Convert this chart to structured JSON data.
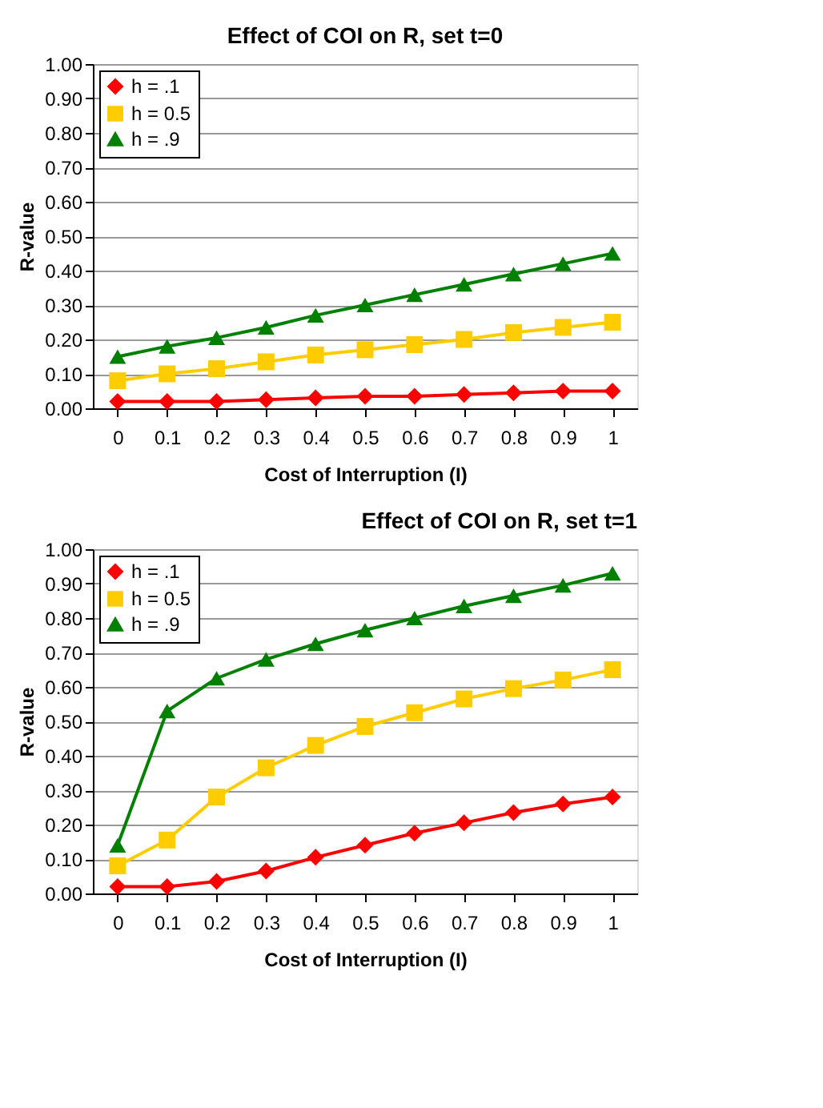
{
  "chart_data": [
    {
      "type": "line",
      "title": "Effect of COI on R, set t=0",
      "xlabel": "Cost of Interruption (I)",
      "ylabel": "R-value",
      "categories": [
        "0",
        "0.1",
        "0.2",
        "0.3",
        "0.4",
        "0.5",
        "0.6",
        "0.7",
        "0.8",
        "0.9",
        "1"
      ],
      "series": [
        {
          "name": "h = .1",
          "color": "#ff0000",
          "marker": "diamond",
          "values": [
            0.02,
            0.02,
            0.02,
            0.025,
            0.03,
            0.035,
            0.035,
            0.04,
            0.045,
            0.05,
            0.05
          ]
        },
        {
          "name": "h = 0.5",
          "color": "#ffcc00",
          "marker": "square",
          "values": [
            0.08,
            0.1,
            0.115,
            0.135,
            0.155,
            0.17,
            0.185,
            0.2,
            0.22,
            0.235,
            0.25
          ]
        },
        {
          "name": "h = .9",
          "color": "#008000",
          "marker": "triangle",
          "values": [
            0.15,
            0.18,
            0.205,
            0.235,
            0.27,
            0.3,
            0.33,
            0.36,
            0.39,
            0.42,
            0.45
          ]
        }
      ],
      "ylim": [
        0,
        1
      ],
      "yticks": [
        {
          "value": 0,
          "label": "0.00"
        },
        {
          "value": 0.1,
          "label": "0.10"
        },
        {
          "value": 0.2,
          "label": "0.20"
        },
        {
          "value": 0.3,
          "label": "0.30"
        },
        {
          "value": 0.4,
          "label": "0.40"
        },
        {
          "value": 0.5,
          "label": "0.50"
        },
        {
          "value": 0.6,
          "label": "0.60"
        },
        {
          "value": 0.7,
          "label": "0.70"
        },
        {
          "value": 0.8,
          "label": "0.80"
        },
        {
          "value": 0.9,
          "label": "0.90"
        },
        {
          "value": 1,
          "label": "1.00"
        }
      ],
      "grid": "y",
      "legend": "top left",
      "line_style": "solid"
    },
    {
      "type": "line",
      "title": "Effect of COI on R, set t=1",
      "xlabel": "Cost of Interruption (I)",
      "ylabel": "R-value",
      "categories": [
        "0",
        "0.1",
        "0.2",
        "0.3",
        "0.4",
        "0.5",
        "0.6",
        "0.7",
        "0.8",
        "0.9",
        "1"
      ],
      "series": [
        {
          "name": "h = .1",
          "color": "#ff0000",
          "marker": "diamond",
          "values": [
            0.02,
            0.02,
            0.035,
            0.065,
            0.105,
            0.14,
            0.175,
            0.205,
            0.235,
            0.26,
            0.28
          ]
        },
        {
          "name": "h = 0.5",
          "color": "#ffcc00",
          "marker": "square",
          "values": [
            0.08,
            0.155,
            0.28,
            0.365,
            0.43,
            0.485,
            0.525,
            0.565,
            0.595,
            0.62,
            0.65
          ]
        },
        {
          "name": "h = .9",
          "color": "#008000",
          "marker": "triangle",
          "values": [
            0.14,
            0.53,
            0.625,
            0.68,
            0.725,
            0.765,
            0.8,
            0.835,
            0.865,
            0.895,
            0.93
          ]
        }
      ],
      "ylim": [
        0,
        1
      ],
      "yticks": [
        {
          "value": 0,
          "label": "0.00"
        },
        {
          "value": 0.1,
          "label": "0.10"
        },
        {
          "value": 0.2,
          "label": "0.20"
        },
        {
          "value": 0.3,
          "label": "0.30"
        },
        {
          "value": 0.4,
          "label": "0.40"
        },
        {
          "value": 0.5,
          "label": "0.50"
        },
        {
          "value": 0.6,
          "label": "0.60"
        },
        {
          "value": 0.7,
          "label": "0.70"
        },
        {
          "value": 0.8,
          "label": "0.80"
        },
        {
          "value": 0.9,
          "label": "0.90"
        },
        {
          "value": 1,
          "label": "1.00"
        }
      ],
      "grid": "y",
      "legend": "top left",
      "line_style": "solid"
    }
  ]
}
